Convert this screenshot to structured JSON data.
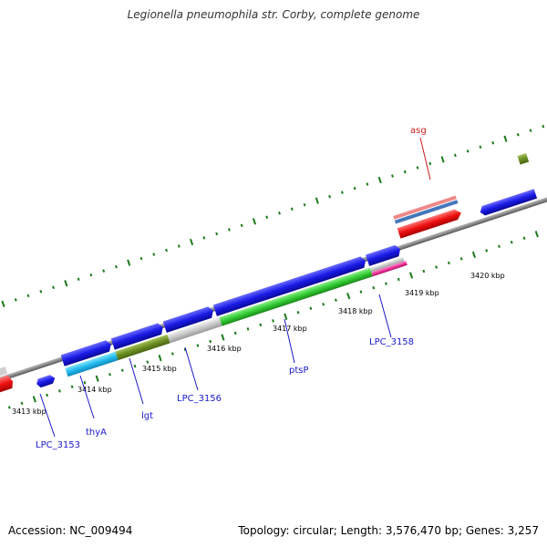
{
  "title": "Legionella pneumophila str. Corby, complete genome",
  "footer": {
    "accession": "Accession: NC_009494",
    "topology": "Topology: circular; Length: 3,576,470 bp; Genes: 3,257"
  },
  "ruler_labels": [
    "3413 kbp",
    "3414 kbp",
    "3415 kbp",
    "3416 kbp",
    "3417 kbp",
    "3418 kbp",
    "3419 kbp",
    "3420 kbp"
  ],
  "gene_labels": [
    {
      "id": "lpc3153",
      "text": "LPC_3153"
    },
    {
      "id": "thya",
      "text": "thyA"
    },
    {
      "id": "lgt",
      "text": "lgt"
    },
    {
      "id": "lpc3156",
      "text": "LPC_3156"
    },
    {
      "id": "ptsp",
      "text": "ptsP"
    },
    {
      "id": "lpc3158",
      "text": "LPC_3158"
    },
    {
      "id": "asg",
      "text": "asg"
    }
  ],
  "colors": {
    "backbone": "#8a8a8a",
    "tick": "#1a7a1a",
    "gene_blue": "#1a1ae6",
    "gene_cyan": "#22bbee",
    "gene_olive": "#6b8e23",
    "gene_gray": "#c8c8c8",
    "gene_green": "#33cc33",
    "gene_magenta": "#ee3399",
    "gene_red": "#ee1111",
    "gene_pink": "#ee8888",
    "gene_steel": "#4477bb",
    "label_blue": "#1a1acc",
    "label_red": "#cc1a1a"
  }
}
